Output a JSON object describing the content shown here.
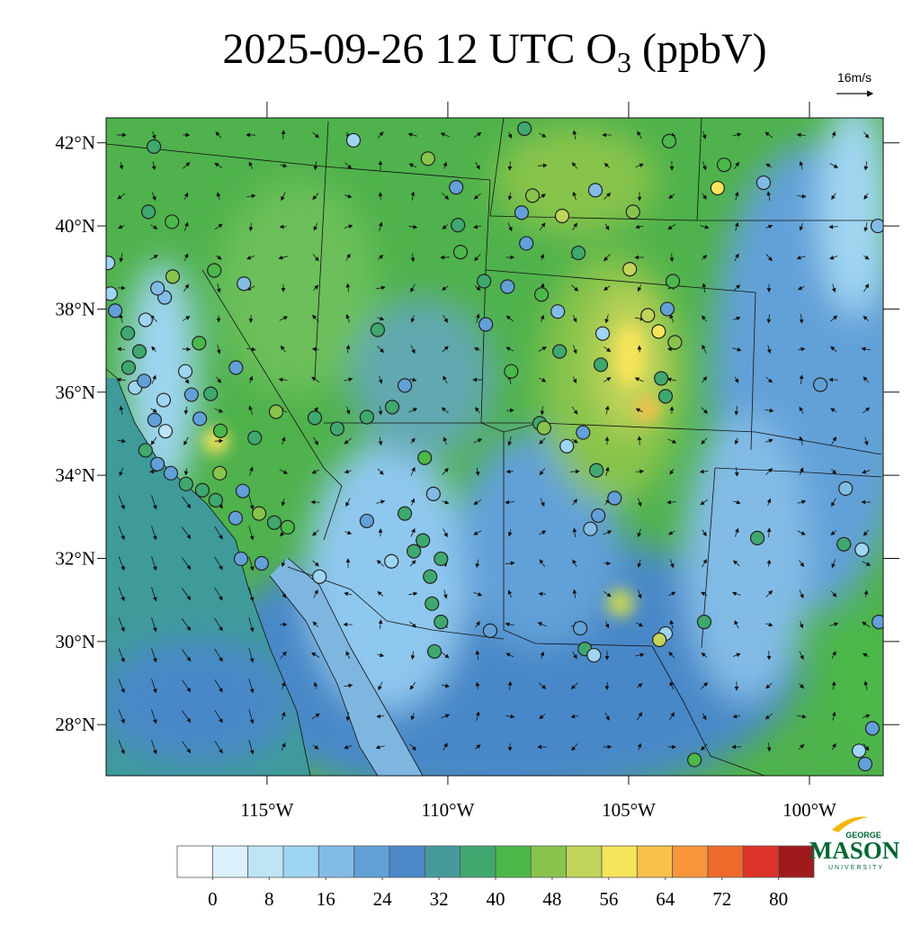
{
  "map": {
    "title": {
      "text": "2025-09-26 12 UTC O",
      "subscript": "3",
      "suffix": " (ppbV)"
    },
    "wind_reference": "16m/s",
    "xlim": [
      -119.45,
      -97.96
    ],
    "ylim": [
      26.77,
      42.6
    ],
    "xticks": [
      {
        "value": -115,
        "label": "115°W"
      },
      {
        "value": -110,
        "label": "110°W"
      },
      {
        "value": -105,
        "label": "105°W"
      },
      {
        "value": -100,
        "label": "100°W"
      }
    ],
    "yticks": [
      {
        "value": 28,
        "label": "28°N"
      },
      {
        "value": 30,
        "label": "30°N"
      },
      {
        "value": 32,
        "label": "32°N"
      },
      {
        "value": 34,
        "label": "34°N"
      },
      {
        "value": 36,
        "label": "36°N"
      },
      {
        "value": 38,
        "label": "38°N"
      },
      {
        "value": 40,
        "label": "40°N"
      },
      {
        "value": 42,
        "label": "42°N"
      }
    ],
    "colorbar": {
      "lim": [
        -5,
        85
      ],
      "step": 5,
      "ticks": [
        0,
        8,
        16,
        24,
        32,
        40,
        48,
        56,
        64,
        72,
        80
      ],
      "colors": [
        "#ffffff",
        "#dcf1fb",
        "#bde5f6",
        "#9ed5f2",
        "#82bce6",
        "#62a0d8",
        "#4a88c8",
        "#479a9c",
        "#3fa86f",
        "#4bb84a",
        "#88c44c",
        "#c2d45a",
        "#f6e45a",
        "#f9c04b",
        "#f7963b",
        "#ef6a2b",
        "#dc3328",
        "#a01a1c"
      ]
    },
    "stations": [
      [
        -118.13,
        41.91,
        38
      ],
      [
        -112.61,
        42.06,
        12
      ],
      [
        -110.55,
        41.62,
        47
      ],
      [
        -107.88,
        42.34,
        38
      ],
      [
        -103.88,
        42.04,
        40
      ],
      [
        -102.36,
        41.47,
        43
      ],
      [
        -102.54,
        40.91,
        55
      ],
      [
        -101.27,
        41.04,
        16
      ],
      [
        -98.11,
        40.0,
        16
      ],
      [
        -107.66,
        40.73,
        47
      ],
      [
        -106.84,
        40.24,
        53
      ],
      [
        -109.77,
        40.93,
        20
      ],
      [
        -105.92,
        40.86,
        18
      ],
      [
        -104.88,
        40.34,
        48
      ],
      [
        -107.96,
        40.32,
        20
      ],
      [
        -117.63,
        40.1,
        42
      ],
      [
        -118.28,
        40.34,
        38
      ],
      [
        -109.72,
        40.02,
        35
      ],
      [
        -109.65,
        39.37,
        40
      ],
      [
        -107.83,
        39.58,
        20
      ],
      [
        -106.39,
        39.35,
        36
      ],
      [
        -104.97,
        38.96,
        52
      ],
      [
        -103.78,
        38.67,
        43
      ],
      [
        -117.61,
        38.78,
        48
      ],
      [
        -116.46,
        38.93,
        40
      ],
      [
        -115.64,
        38.61,
        18
      ],
      [
        -109.0,
        38.67,
        38
      ],
      [
        -108.35,
        38.54,
        20
      ],
      [
        -107.41,
        38.35,
        40
      ],
      [
        -106.96,
        37.94,
        18
      ],
      [
        -104.47,
        37.85,
        52
      ],
      [
        -104.17,
        37.46,
        55
      ],
      [
        -103.72,
        37.2,
        48
      ],
      [
        -103.93,
        38.0,
        22
      ],
      [
        -104.1,
        36.33,
        38
      ],
      [
        -103.98,
        35.9,
        36
      ],
      [
        -105.72,
        37.41,
        14
      ],
      [
        -105.77,
        36.66,
        37
      ],
      [
        -106.91,
        36.98,
        35
      ],
      [
        -108.25,
        36.5,
        44
      ],
      [
        -108.95,
        37.63,
        22
      ],
      [
        -111.94,
        37.5,
        38
      ],
      [
        -111.54,
        35.64,
        38
      ],
      [
        -111.19,
        36.16,
        22
      ],
      [
        -112.24,
        35.4,
        36
      ],
      [
        -113.68,
        35.38,
        38
      ],
      [
        -113.06,
        35.12,
        36
      ],
      [
        -114.75,
        35.53,
        47
      ],
      [
        -115.34,
        34.9,
        38
      ],
      [
        -116.29,
        35.07,
        40
      ],
      [
        -116.31,
        34.05,
        48
      ],
      [
        -116.86,
        35.36,
        20
      ],
      [
        -116.56,
        35.96,
        38
      ],
      [
        -115.86,
        36.59,
        20
      ],
      [
        -116.88,
        37.18,
        40
      ],
      [
        -117.81,
        35.06,
        8
      ],
      [
        -118.11,
        35.33,
        22
      ],
      [
        -117.86,
        35.81,
        14
      ],
      [
        -118.65,
        36.11,
        14
      ],
      [
        -118.83,
        36.59,
        36
      ],
      [
        -118.4,
        36.27,
        20
      ],
      [
        -118.36,
        37.74,
        14
      ],
      [
        -118.85,
        37.42,
        38
      ],
      [
        -118.53,
        36.98,
        36
      ],
      [
        -119.2,
        37.96,
        22
      ],
      [
        -119.33,
        38.37,
        14
      ],
      [
        -117.83,
        38.28,
        16
      ],
      [
        -118.03,
        38.5,
        16
      ],
      [
        -117.26,
        36.5,
        14
      ],
      [
        -117.09,
        35.94,
        20
      ],
      [
        -118.36,
        34.6,
        38
      ],
      [
        -118.03,
        34.27,
        22
      ],
      [
        -117.66,
        34.05,
        22
      ],
      [
        -117.24,
        33.79,
        36
      ],
      [
        -116.79,
        33.64,
        38
      ],
      [
        -116.42,
        33.4,
        36
      ],
      [
        -115.67,
        33.62,
        22
      ],
      [
        -115.87,
        32.97,
        22
      ],
      [
        -115.22,
        33.08,
        47
      ],
      [
        -114.43,
        32.75,
        44
      ],
      [
        -114.8,
        32.86,
        38
      ],
      [
        -115.72,
        31.99,
        22
      ],
      [
        -115.15,
        31.88,
        22
      ],
      [
        -113.55,
        31.56,
        14
      ],
      [
        -112.24,
        32.9,
        22
      ],
      [
        -111.56,
        31.93,
        12
      ],
      [
        -110.94,
        32.17,
        38
      ],
      [
        -110.69,
        32.43,
        38
      ],
      [
        -110.19,
        31.99,
        36
      ],
      [
        -110.49,
        31.56,
        36
      ],
      [
        -111.19,
        33.08,
        38
      ],
      [
        -110.64,
        34.42,
        40
      ],
      [
        -110.4,
        33.55,
        18
      ],
      [
        -110.44,
        30.91,
        38
      ],
      [
        -110.19,
        30.47,
        38
      ],
      [
        -110.37,
        29.76,
        36
      ],
      [
        -108.83,
        30.26,
        22
      ],
      [
        -107.46,
        35.25,
        38
      ],
      [
        -107.34,
        35.14,
        47
      ],
      [
        -106.71,
        34.7,
        14
      ],
      [
        -106.26,
        35.03,
        20
      ],
      [
        -105.89,
        34.12,
        36
      ],
      [
        -105.39,
        33.45,
        22
      ],
      [
        -105.84,
        33.03,
        20
      ],
      [
        -106.06,
        32.71,
        18
      ],
      [
        -106.34,
        30.32,
        22
      ],
      [
        -106.21,
        29.82,
        36
      ],
      [
        -105.96,
        29.67,
        14
      ],
      [
        -103.98,
        30.19,
        12
      ],
      [
        -104.15,
        30.04,
        50
      ],
      [
        -102.91,
        30.47,
        38
      ],
      [
        -103.18,
        27.15,
        43
      ],
      [
        -101.44,
        32.49,
        36
      ],
      [
        -99.7,
        36.18,
        20
      ],
      [
        -99.0,
        33.68,
        16
      ],
      [
        -99.05,
        32.34,
        36
      ],
      [
        -98.55,
        32.21,
        12
      ],
      [
        -98.08,
        30.47,
        22
      ],
      [
        -98.26,
        27.91,
        22
      ],
      [
        -98.63,
        27.37,
        14
      ],
      [
        -98.46,
        27.05,
        22
      ],
      [
        -119.4,
        39.11,
        14
      ]
    ]
  },
  "logo": {
    "top": "GEORGE",
    "main": "MASON",
    "bottom": "UNIVERSITY"
  }
}
